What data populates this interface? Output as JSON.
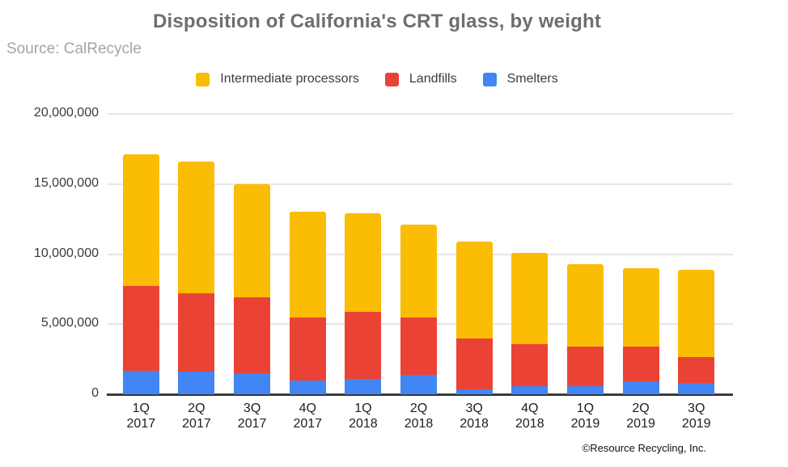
{
  "title": "Disposition of California's CRT glass, by weight",
  "source": "Source: CalRecycle",
  "footer": "©Resource Recycling, Inc.",
  "legend": [
    {
      "label": "Intermediate processors",
      "color": "#FBBC04"
    },
    {
      "label": "Landfills",
      "color": "#EA4335"
    },
    {
      "label": "Smelters",
      "color": "#4285F4"
    }
  ],
  "y_axis": {
    "tick_labels": [
      "20,000,000",
      "15,000,000",
      "10,000,000",
      "5,000,000",
      "0"
    ]
  },
  "chart_data": {
    "type": "bar",
    "stacked": true,
    "title": "Disposition of California's CRT glass, by weight",
    "xlabel": "",
    "ylabel": "",
    "ylim": [
      0,
      20000000
    ],
    "yticks": [
      0,
      5000000,
      10000000,
      15000000,
      20000000
    ],
    "grid": true,
    "legend_position": "top",
    "categories": [
      "1Q 2017",
      "2Q 2017",
      "3Q 2017",
      "4Q 2017",
      "1Q 2018",
      "2Q 2018",
      "3Q 2018",
      "4Q 2018",
      "1Q 2019",
      "2Q 2019",
      "3Q 2019"
    ],
    "series": [
      {
        "name": "Smelters",
        "color": "#4285F4",
        "values": [
          1700000,
          1600000,
          1500000,
          1000000,
          1100000,
          1400000,
          350000,
          600000,
          600000,
          950000,
          800000
        ]
      },
      {
        "name": "Landfills",
        "color": "#EA4335",
        "values": [
          6000000,
          5600000,
          5400000,
          4500000,
          4800000,
          4100000,
          3650000,
          3000000,
          2800000,
          2450000,
          1850000
        ]
      },
      {
        "name": "Intermediate processors",
        "color": "#FBBC04",
        "values": [
          9400000,
          9400000,
          8100000,
          7500000,
          7000000,
          6600000,
          6900000,
          6500000,
          5900000,
          5600000,
          6250000
        ]
      }
    ],
    "totals": [
      17100000,
      16600000,
      15000000,
      13000000,
      12900000,
      12100000,
      10900000,
      10100000,
      9300000,
      9000000,
      8900000
    ]
  }
}
